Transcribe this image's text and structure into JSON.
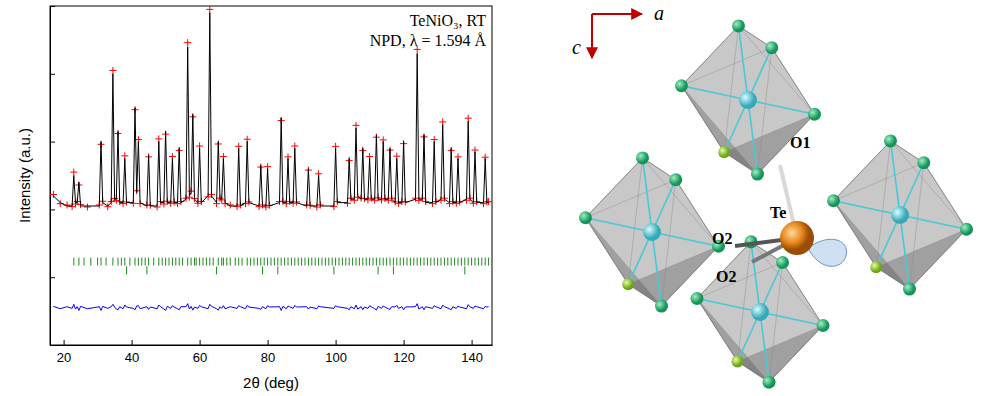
{
  "chart_data": {
    "type": "line",
    "annotations": [
      "TeNiO₃, RT",
      "NPD, λ = 1.594 Å"
    ],
    "x_label": "2θ (deg)",
    "y_label": "Intensity (a.u.)",
    "xlim": [
      16,
      146
    ],
    "xticks": [
      20,
      40,
      60,
      80,
      100,
      120,
      140
    ],
    "ylim": [
      0,
      100
    ],
    "yticks": [
      0,
      20,
      40,
      60,
      80,
      100
    ],
    "tick_labels": "x",
    "grid": false,
    "x": [
      17,
      19,
      21,
      22.5,
      23,
      23.5,
      24,
      24.5,
      25,
      27,
      30.5,
      31,
      31.5,
      33,
      34,
      34.5,
      35,
      35.5,
      36,
      36.5,
      37.5,
      38,
      38.5,
      40.5,
      41,
      41.5,
      42,
      42.5,
      44.5,
      45,
      45.5,
      47.5,
      48,
      48.5,
      49.5,
      50,
      50.5,
      51.5,
      52,
      52.5,
      53.5,
      54,
      54.5,
      56,
      56.5,
      57,
      57.5,
      58,
      58.5,
      59.5,
      60,
      60.5,
      62.5,
      63,
      63.5,
      65,
      65.5,
      66,
      66.5,
      67,
      67.5,
      69,
      71,
      71.5,
      72,
      73.5,
      74,
      74.5,
      77.5,
      78,
      78.5,
      79.5,
      80,
      80.5,
      83.5,
      84,
      84.5,
      85.5,
      86,
      86.5,
      87.5,
      88,
      88.5,
      91.5,
      92,
      92.5,
      94.5,
      95,
      95.5,
      99.5,
      100,
      100.5,
      103.5,
      104,
      104.5,
      105.5,
      106,
      106.5,
      107.5,
      108,
      108.5,
      109.5,
      110,
      110.5,
      111.5,
      112,
      112.5,
      113.5,
      114,
      114.5,
      115.5,
      116,
      116.5,
      117.5,
      118,
      118.5,
      119.5,
      120,
      120.5,
      123.5,
      124,
      124.5,
      125.5,
      126,
      126.5,
      128.5,
      129,
      129.5,
      131,
      131.5,
      132,
      133.5,
      134,
      134.5,
      135.5,
      136,
      136.5,
      138.5,
      139,
      139.5,
      140.5,
      141,
      141.5,
      143.5,
      144,
      144.5,
      145
    ],
    "series": [
      {
        "type": "scatter",
        "marker": "plus",
        "color": "#ff0000",
        "values": [
          44.4,
          41.7,
          41.3,
          40.8,
          51,
          41.6,
          42.3,
          47.2,
          41.4,
          40.7,
          41.3,
          59.2,
          42.4,
          40.8,
          42.3,
          81,
          43.2,
          42.6,
          62.4,
          42.3,
          41.7,
          55.8,
          42.2,
          41.8,
          69.4,
          45.5,
          60.6,
          41.7,
          41.3,
          55.5,
          41.2,
          40.7,
          60.8,
          42.3,
          41.6,
          62.2,
          42.4,
          41.8,
          55.6,
          42.2,
          41.7,
          57.4,
          42.3,
          43.3,
          89.2,
          43.6,
          45.4,
          67.3,
          43.2,
          41.8,
          58.7,
          42.3,
          43.7,
          99,
          44.4,
          41.7,
          59.3,
          43.3,
          42.8,
          55.6,
          41.7,
          41.3,
          40.8,
          58.6,
          41.3,
          41.7,
          60.7,
          42.2,
          40.8,
          52.5,
          41.3,
          40.7,
          52.6,
          41.2,
          42.3,
          66.2,
          42.4,
          41.7,
          55.5,
          42.3,
          41.8,
          58.7,
          42.2,
          41.3,
          51.6,
          41.2,
          40.7,
          50.5,
          41.3,
          40.8,
          58.6,
          42.3,
          41.8,
          54.4,
          43.3,
          42.7,
          64.8,
          43.6,
          43.3,
          57.4,
          43.2,
          42.8,
          55.6,
          43.3,
          42.7,
          61.3,
          43.4,
          42.8,
          60.5,
          43.2,
          42.7,
          57.5,
          43.3,
          42.2,
          55.7,
          41.8,
          42.3,
          59.4,
          42.2,
          43.3,
          87.2,
          42.6,
          43.3,
          61.4,
          42.3,
          41.8,
          60.6,
          42.3,
          42.7,
          65.8,
          43.3,
          41.7,
          57.4,
          42.3,
          41.8,
          55.5,
          42.2,
          42.7,
          66.9,
          43.3,
          41.8,
          57.5,
          42.3,
          41.7,
          55.4,
          42.2,
          42.3
        ]
      },
      {
        "type": "line",
        "line_style": "solid",
        "color": "#000000",
        "values": [
          44,
          42,
          41,
          41,
          50,
          42,
          42,
          48,
          41,
          41,
          41,
          60,
          42,
          41,
          42,
          80,
          43,
          43,
          63,
          42,
          42,
          55,
          42,
          42,
          70,
          45,
          60,
          42,
          41,
          56,
          41,
          41,
          60,
          42,
          42,
          63,
          42,
          42,
          55,
          42,
          42,
          58,
          42,
          43,
          88,
          44,
          45,
          68,
          43,
          42,
          58,
          42,
          44,
          98,
          44,
          42,
          60,
          43,
          43,
          55,
          42,
          41,
          41,
          58,
          41,
          42,
          60,
          42,
          41,
          53,
          41,
          41,
          52,
          41,
          42,
          67,
          42,
          42,
          55,
          42,
          42,
          58,
          42,
          41,
          52,
          41,
          41,
          50,
          41,
          41,
          58,
          42,
          42,
          55,
          43,
          43,
          64,
          44,
          43,
          58,
          43,
          43,
          55,
          43,
          43,
          62,
          43,
          43,
          60,
          43,
          43,
          58,
          43,
          42,
          55,
          42,
          42,
          60,
          42,
          43,
          86,
          43,
          43,
          62,
          42,
          42,
          60,
          42,
          43,
          65,
          43,
          42,
          58,
          42,
          42,
          55,
          42,
          43,
          66,
          43,
          42,
          57,
          42,
          42,
          55,
          42,
          42
        ]
      },
      {
        "type": "line",
        "line_style": "solid",
        "color": "#0000ff",
        "values": [
          11.4,
          10.7,
          11.3,
          10.8,
          12,
          10.6,
          11.3,
          10.2,
          11.4,
          10.7,
          11.3,
          10.2,
          11.4,
          10.8,
          11.3,
          12,
          11.2,
          10.6,
          10.4,
          11.3,
          10.7,
          11.8,
          11.2,
          10.8,
          10.4,
          11.5,
          11.6,
          10.7,
          11.3,
          10.5,
          11.2,
          10.7,
          11.8,
          11.3,
          10.6,
          10.2,
          11.4,
          10.8,
          11.6,
          11.2,
          10.7,
          10.4,
          11.3,
          11.3,
          12.2,
          10.6,
          11.4,
          10.3,
          11.2,
          10.8,
          11.7,
          11.3,
          10.7,
          12,
          11.4,
          10.7,
          10.3,
          11.3,
          10.8,
          11.6,
          10.7,
          11.3,
          10.8,
          11.6,
          11.3,
          10.7,
          11.7,
          11.2,
          10.8,
          10.5,
          11.3,
          10.7,
          11.6,
          11.2,
          11.3,
          10.2,
          11.4,
          10.7,
          11.5,
          11.3,
          10.8,
          11.7,
          11.2,
          11.3,
          10.6,
          11.2,
          10.7,
          11.5,
          11.3,
          10.8,
          11.6,
          11.3,
          10.8,
          10.4,
          11.3,
          10.7,
          11.8,
          10.6,
          11.3,
          10.4,
          11.2,
          10.8,
          11.6,
          11.3,
          10.7,
          10.3,
          11.4,
          10.8,
          11.5,
          11.2,
          10.7,
          10.5,
          11.3,
          11.2,
          11.7,
          10.8,
          11.3,
          10.4,
          11.2,
          11.3,
          12.2,
          10.6,
          11.3,
          10.4,
          11.3,
          10.8,
          11.6,
          11.3,
          10.7,
          11.8,
          11.3,
          10.7,
          10.4,
          11.3,
          10.8,
          11.5,
          11.2,
          10.7,
          11.9,
          11.3,
          10.8,
          11.5,
          11.3,
          10.7,
          11.4,
          11.2,
          11.3
        ]
      }
    ],
    "reflections": [
      {
        "color": "#228b22",
        "level": 24.6,
        "positions": [
          23,
          24.5,
          26,
          28,
          30,
          31,
          32.5,
          34.5,
          36,
          37,
          38,
          39.5,
          41,
          42,
          43,
          44,
          45,
          46.5,
          48,
          49,
          50,
          51,
          52,
          53,
          54,
          55,
          56.5,
          57.5,
          58.5,
          59,
          60,
          61,
          62,
          63,
          64,
          65.5,
          66.5,
          67,
          68,
          69,
          70.5,
          71.5,
          72.5,
          74,
          75,
          76,
          77,
          78,
          79,
          80,
          81,
          82,
          83,
          84,
          85,
          86,
          87,
          88,
          89,
          90,
          91,
          92,
          93,
          94,
          95,
          96,
          97,
          98,
          99,
          100,
          101,
          102,
          103,
          104,
          105,
          106,
          107,
          108,
          109,
          110,
          111,
          112,
          113,
          114,
          115,
          116,
          117,
          118,
          119,
          120,
          121,
          122,
          123,
          124,
          125,
          126,
          127,
          128,
          129,
          130,
          131,
          132,
          133,
          134,
          135,
          136,
          137,
          138,
          139,
          140,
          141,
          142,
          143,
          144,
          145
        ]
      },
      {
        "color": "#228b22",
        "level": 22,
        "positions": [
          38.5,
          44.5,
          65,
          78.5,
          83,
          99.5,
          112.5,
          117,
          138
        ]
      }
    ]
  },
  "diagram": {
    "axes": [
      "a",
      "c"
    ],
    "labels": [
      "O1",
      "Te",
      "O2",
      "O2"
    ]
  }
}
